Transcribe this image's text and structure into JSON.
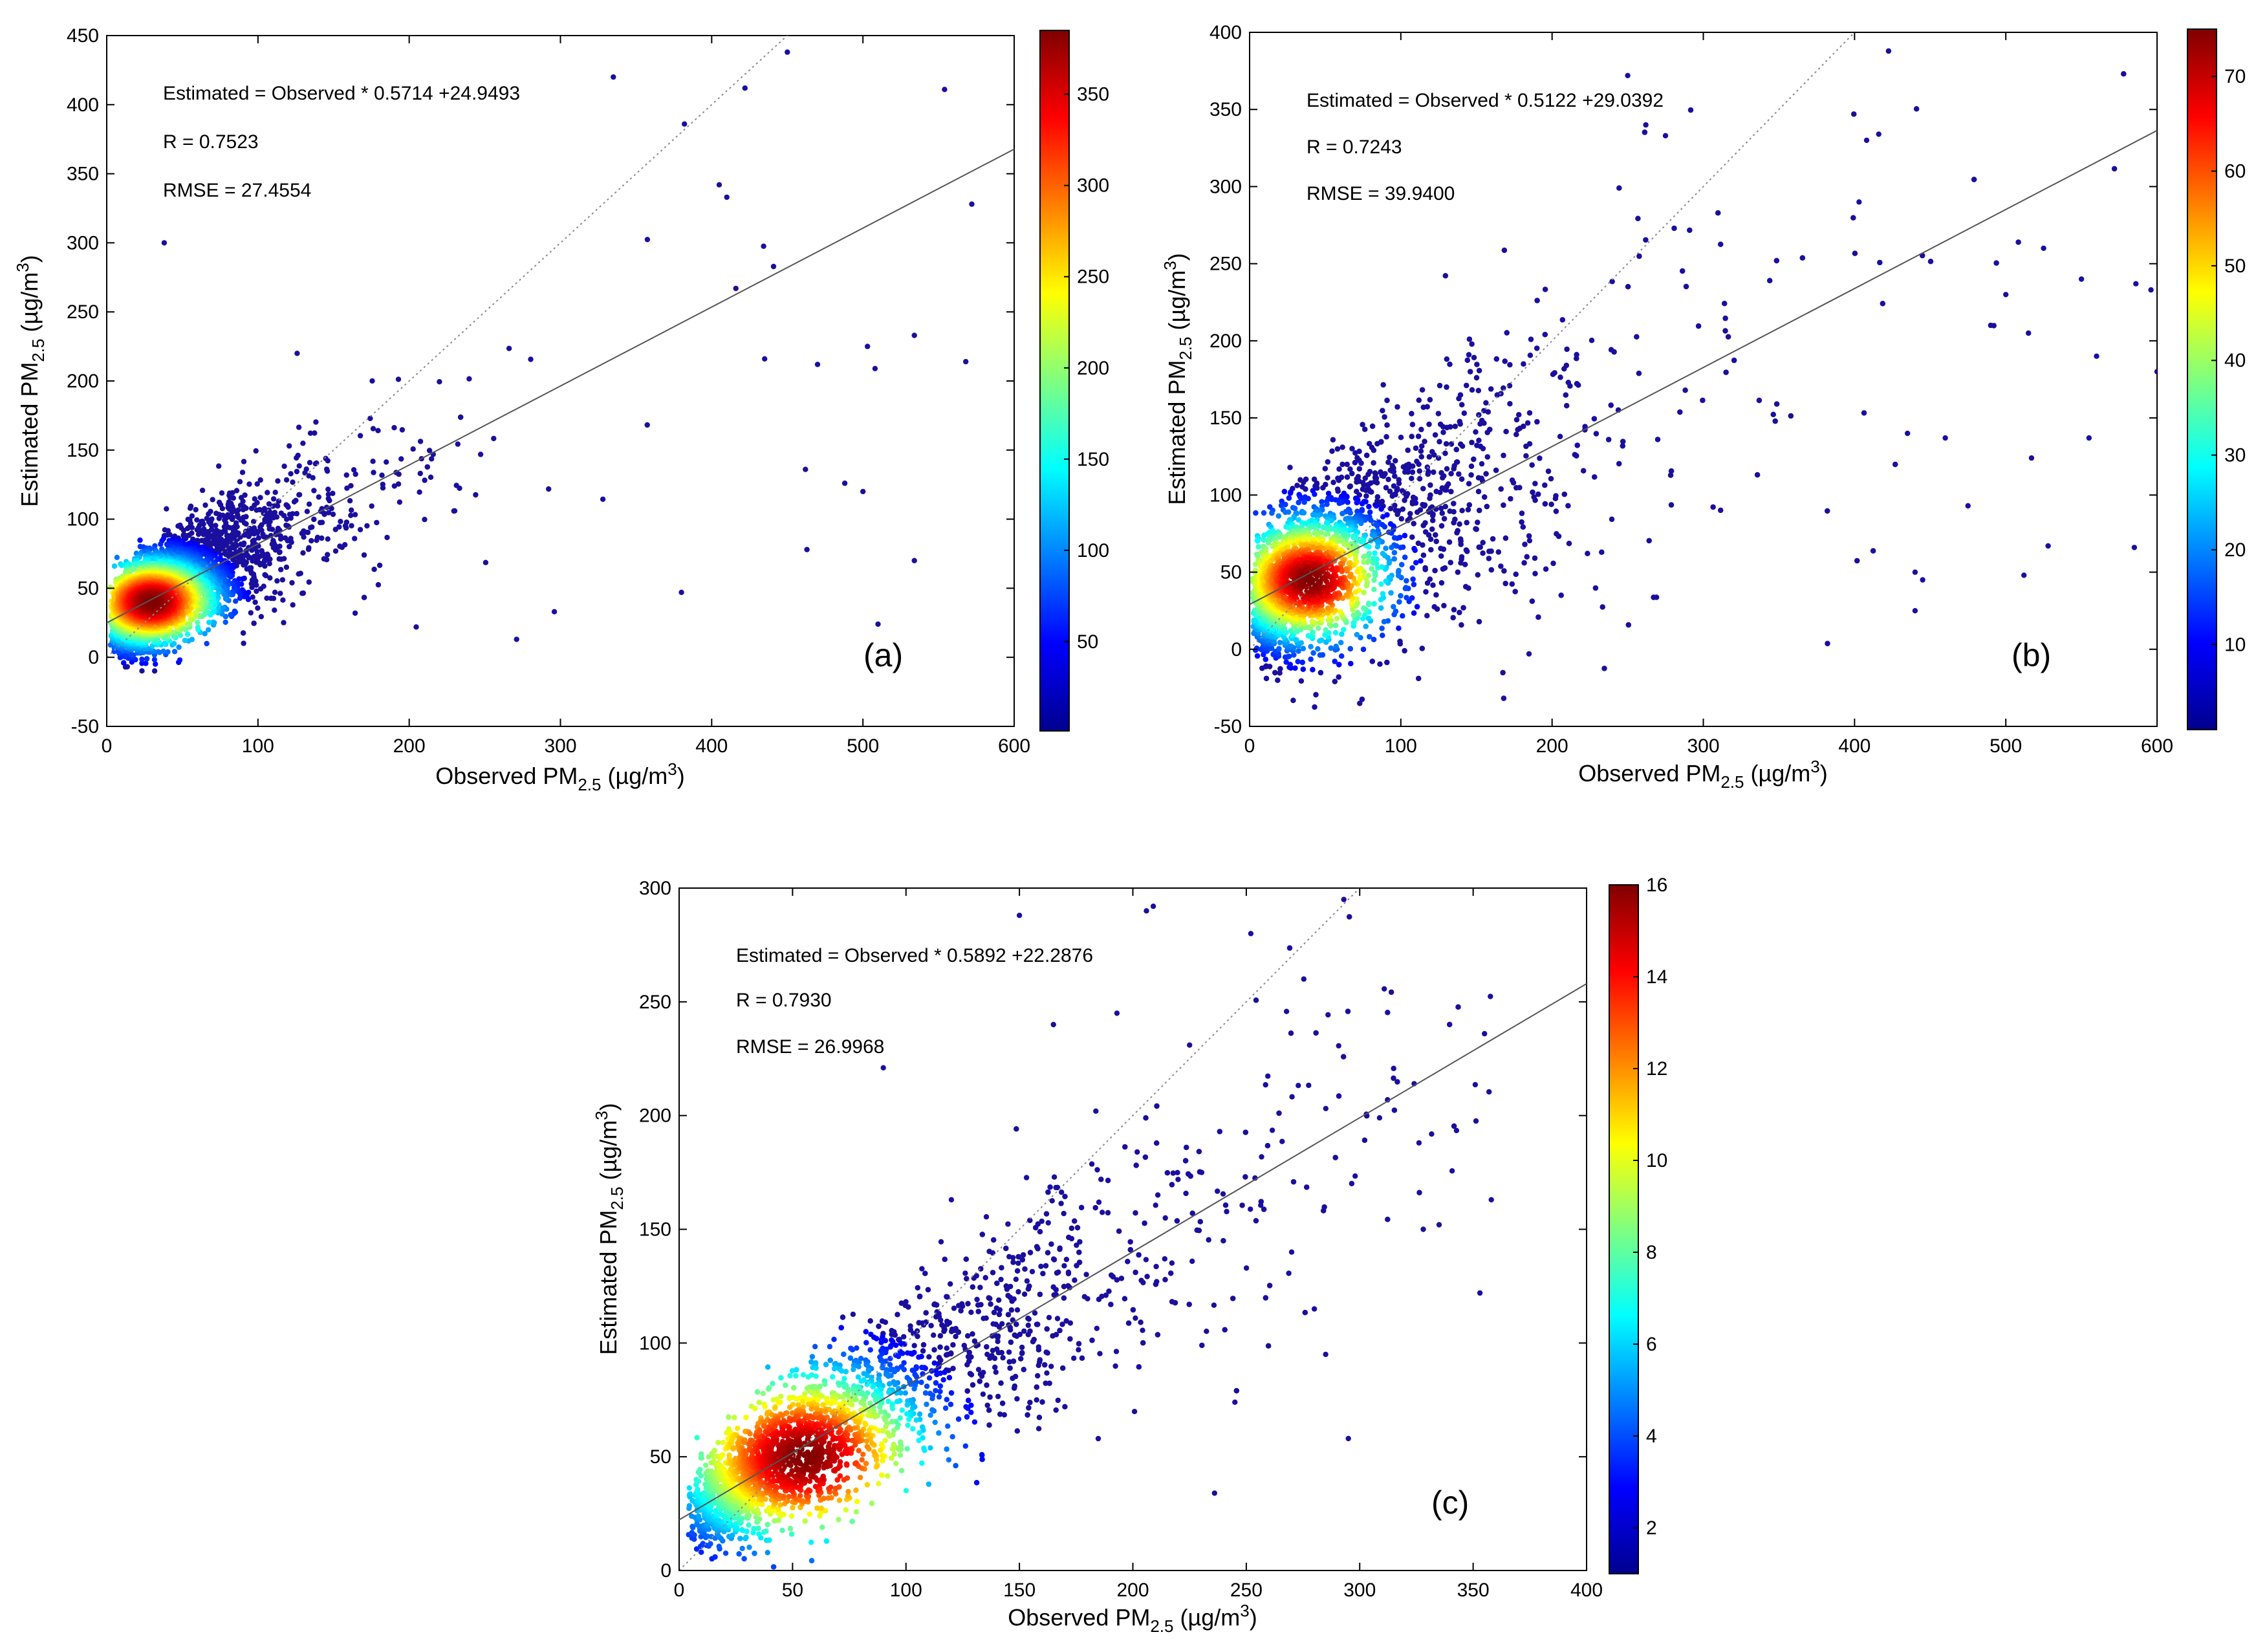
{
  "chart_data": [
    {
      "id": "a",
      "type": "scatter",
      "xlabel_main": "Observed PM",
      "xlabel_sub": "2.5",
      "xlabel_unit": " (µg/m",
      "xlabel_unit_sup": "3",
      "xlabel_close": ")",
      "ylabel_main": "Estimated PM",
      "ylabel_sub": "2.5",
      "ylabel_unit": " (µg/m",
      "ylabel_unit_sup": "3",
      "ylabel_close": ")",
      "xlim": [
        0,
        600
      ],
      "ylim": [
        -50,
        450
      ],
      "xticks": [
        0,
        100,
        200,
        300,
        400,
        500,
        600
      ],
      "yticks": [
        -50,
        0,
        50,
        100,
        150,
        200,
        250,
        300,
        350,
        400,
        450
      ],
      "fit": {
        "slope": 0.5714,
        "intercept": 24.9493
      },
      "annotations": [
        "Estimated = Observed * 0.5714 +24.9493",
        "R = 0.7523",
        "RMSE = 27.4554"
      ],
      "panel_label": "(a)",
      "colorbar": {
        "range": [
          1,
          385
        ],
        "ticks": [
          50,
          100,
          150,
          200,
          250,
          300,
          350
        ]
      },
      "density": {
        "center": [
          30,
          40
        ],
        "spread_x": 22,
        "spread_y": 16,
        "spread_scale": 1.0,
        "n_points": 5200,
        "resid_sd": 25,
        "max_x": 600
      },
      "outliers": [
        [
          38,
          300
        ],
        [
          335,
          420
        ],
        [
          450,
          438
        ],
        [
          422,
          412
        ],
        [
          554,
          411
        ],
        [
          572,
          328
        ],
        [
          568,
          214
        ],
        [
          534,
          233
        ],
        [
          488,
          126
        ],
        [
          500,
          120
        ],
        [
          462,
          136
        ],
        [
          463,
          78
        ],
        [
          534,
          70
        ],
        [
          435,
          216
        ],
        [
          470,
          212
        ],
        [
          503,
          225
        ],
        [
          508,
          209
        ],
        [
          380,
          47
        ],
        [
          510,
          24
        ],
        [
          271,
          13
        ],
        [
          296,
          33
        ],
        [
          382,
          386
        ],
        [
          405,
          342
        ],
        [
          410,
          333
        ],
        [
          416,
          267
        ]
      ]
    },
    {
      "id": "b",
      "type": "scatter",
      "xlabel_main": "Observed PM",
      "xlabel_sub": "2.5",
      "xlabel_unit": " (µg/m",
      "xlabel_unit_sup": "3",
      "xlabel_close": ")",
      "ylabel_main": "Estimated PM",
      "ylabel_sub": "2.5",
      "ylabel_unit": " (µg/m",
      "ylabel_unit_sup": "3",
      "ylabel_close": ")",
      "xlim": [
        0,
        600
      ],
      "ylim": [
        -50,
        400
      ],
      "xticks": [
        0,
        100,
        200,
        300,
        400,
        500,
        600
      ],
      "yticks": [
        -50,
        0,
        50,
        100,
        150,
        200,
        250,
        300,
        350,
        400
      ],
      "fit": {
        "slope": 0.5122,
        "intercept": 29.0392
      },
      "annotations": [
        "Estimated = Observed * 0.5122 +29.0392",
        "R = 0.7243",
        "RMSE = 39.9400"
      ],
      "panel_label": "(b)",
      "colorbar": {
        "range": [
          1,
          75
        ],
        "ticks": [
          10,
          20,
          30,
          40,
          50,
          60,
          70
        ]
      },
      "density": {
        "center": [
          40,
          45
        ],
        "spread_x": 26,
        "spread_y": 20,
        "spread_scale": 1.3,
        "n_points": 5200,
        "resid_sd": 38,
        "max_x": 600
      },
      "outliers": [
        [
          250,
          372
        ],
        [
          262,
          340
        ],
        [
          275,
          333
        ],
        [
          408,
          330
        ],
        [
          416,
          334
        ],
        [
          403,
          290
        ],
        [
          525,
          260
        ],
        [
          550,
          240
        ],
        [
          586,
          237
        ],
        [
          596,
          233
        ],
        [
          560,
          190
        ],
        [
          600,
          180
        ],
        [
          512,
          48
        ],
        [
          528,
          67
        ],
        [
          585,
          66
        ],
        [
          555,
          137
        ],
        [
          517,
          124
        ],
        [
          475,
          93
        ],
        [
          440,
          50
        ],
        [
          440,
          25
        ],
        [
          445,
          45
        ],
        [
          460,
          137
        ],
        [
          435,
          140
        ],
        [
          490,
          210
        ],
        [
          500,
          230
        ],
        [
          515,
          205
        ]
      ]
    },
    {
      "id": "c",
      "type": "scatter",
      "xlabel_main": "Observed PM",
      "xlabel_sub": "2.5",
      "xlabel_unit": " (µg/m",
      "xlabel_unit_sup": "3",
      "xlabel_close": ")",
      "ylabel_main": "Estimated PM",
      "ylabel_sub": "2.5",
      "ylabel_unit": " (µg/m",
      "ylabel_unit_sup": "3",
      "ylabel_close": ")",
      "xlim": [
        0,
        400
      ],
      "ylim": [
        0,
        300
      ],
      "xticks": [
        0,
        50,
        100,
        150,
        200,
        250,
        300,
        350,
        400
      ],
      "yticks": [
        0,
        50,
        100,
        150,
        200,
        250,
        300
      ],
      "fit": {
        "slope": 0.5892,
        "intercept": 22.2876
      },
      "annotations": [
        "Estimated = Observed * 0.5892 +22.2876",
        "R = 0.7930",
        "RMSE = 26.9968"
      ],
      "panel_label": "(c)",
      "colorbar": {
        "range": [
          1,
          16
        ],
        "ticks": [
          2,
          4,
          6,
          8,
          10,
          12,
          14,
          16
        ]
      },
      "density": {
        "center": [
          55,
          50
        ],
        "spread_x": 28,
        "spread_y": 20,
        "spread_scale": 1.1,
        "n_points": 4200,
        "resid_sd": 20,
        "max_x": 360
      },
      "outliers": [
        [
          150,
          288
        ],
        [
          206,
          290
        ],
        [
          209,
          292
        ],
        [
          252,
          280
        ],
        [
          293,
          295
        ],
        [
          193,
          245
        ],
        [
          225,
          231
        ],
        [
          90,
          221
        ],
        [
          355,
          236
        ],
        [
          324,
          214
        ],
        [
          358,
          163
        ],
        [
          353,
          122
        ],
        [
          295,
          58
        ],
        [
          285,
          95
        ],
        [
          236,
          34
        ],
        [
          328,
          150
        ],
        [
          335,
          152
        ],
        [
          245,
          74
        ],
        [
          280,
          115
        ],
        [
          270,
          140
        ],
        [
          120,
          163
        ],
        [
          165,
          240
        ]
      ]
    }
  ]
}
